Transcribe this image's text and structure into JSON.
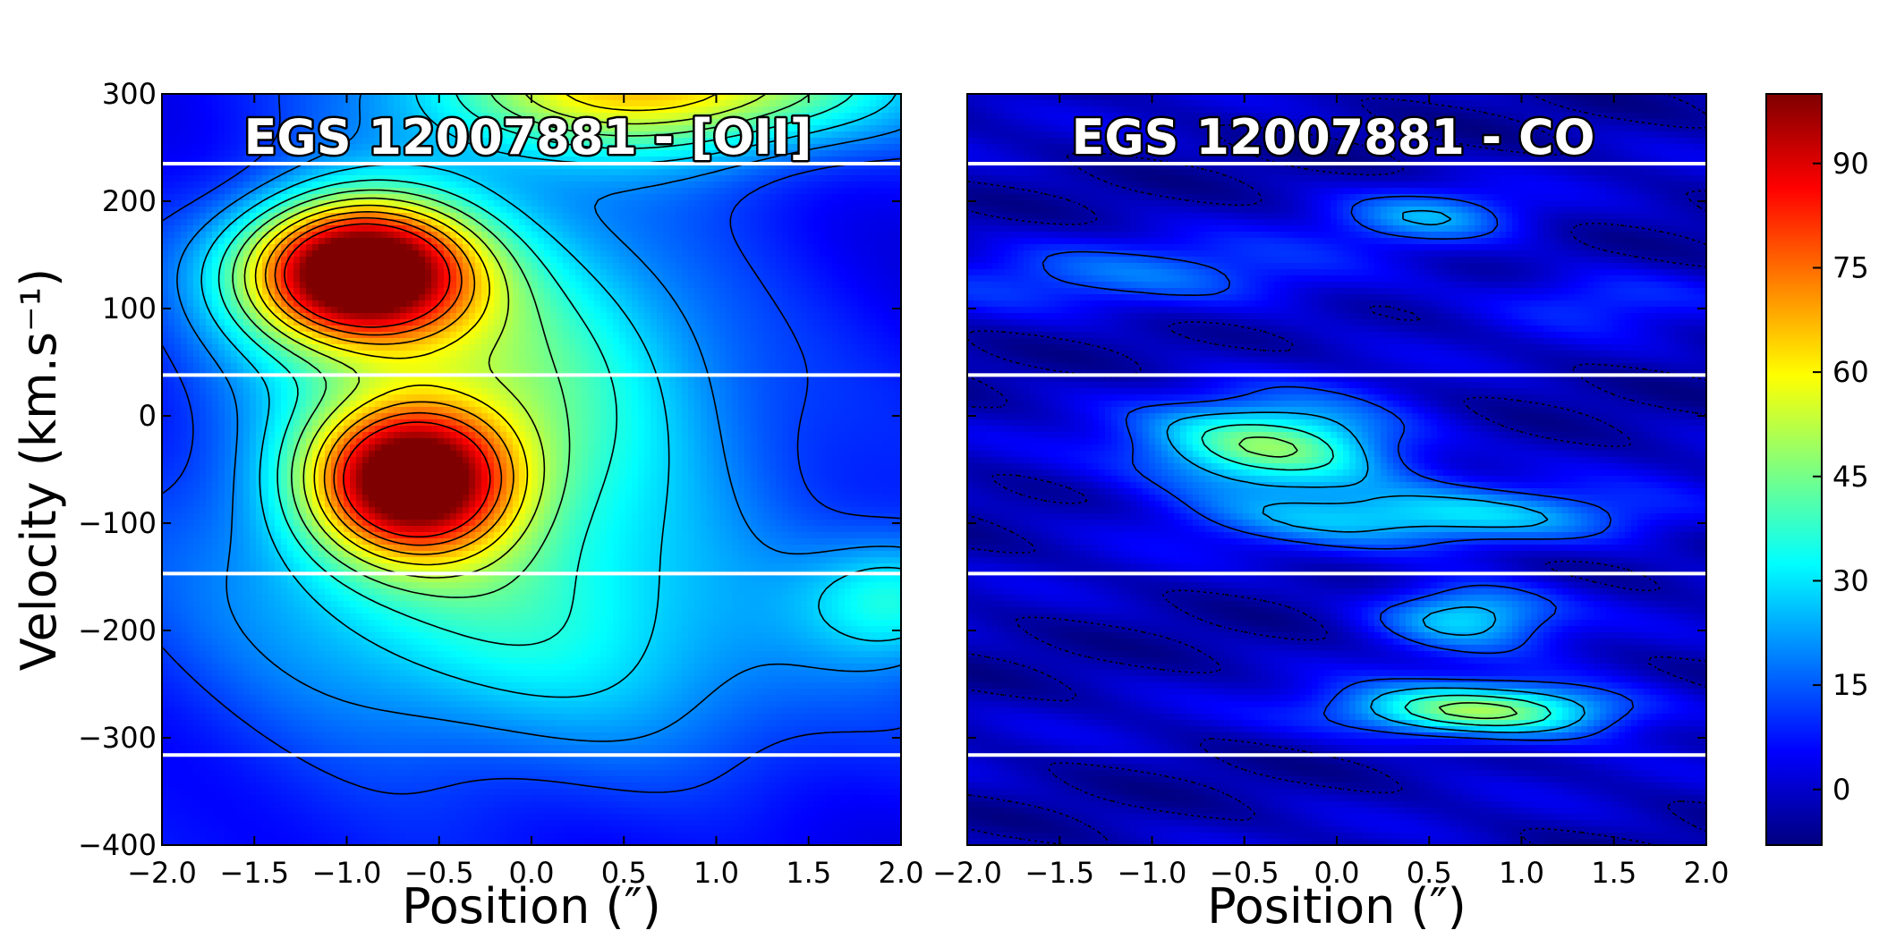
{
  "chart_data": [
    {
      "type": "heatmap",
      "title": "EGS 12007881 - [OII]",
      "xlabel": "Position (″)",
      "ylabel": "Velocity (km.s⁻¹)",
      "xlim": [
        -2.0,
        2.0
      ],
      "ylim": [
        -400,
        300
      ],
      "x_ticks": [
        "−2.0",
        "−1.5",
        "−1.0",
        "−0.5",
        "0.0",
        "0.5",
        "1.0",
        "1.5",
        "2.0"
      ],
      "x_tick_values": [
        -2.0,
        -1.5,
        -1.0,
        -0.5,
        0.0,
        0.5,
        1.0,
        1.5,
        2.0
      ],
      "y_ticks": [
        "300",
        "200",
        "100",
        "0",
        "−100",
        "−200",
        "−300",
        "−400"
      ],
      "y_tick_values": [
        300,
        200,
        100,
        0,
        -100,
        -200,
        -300,
        -400
      ],
      "horizontal_lines_velocity": [
        235,
        38,
        -147,
        -316
      ],
      "components": [
        {
          "x": -0.95,
          "v": 135,
          "peak": 98,
          "sx": 0.42,
          "sv": 45
        },
        {
          "x": -0.65,
          "v": -60,
          "peak": 82,
          "sx": 0.38,
          "sv": 48
        },
        {
          "x": -0.3,
          "v": 40,
          "peak": 38,
          "sx": 0.9,
          "sv": 140
        },
        {
          "x": 0.0,
          "v": -200,
          "peak": 22,
          "sx": 1.3,
          "sv": 110
        },
        {
          "x": 0.7,
          "v": 310,
          "peak": 58,
          "sx": 0.9,
          "sv": 45
        },
        {
          "x": 2.0,
          "v": -170,
          "peak": 26,
          "sx": 0.35,
          "sv": 40
        }
      ]
    },
    {
      "type": "heatmap",
      "title": "EGS 12007881 - CO",
      "xlabel": "Position (″)",
      "ylabel": "",
      "xlim": [
        -2.0,
        2.0
      ],
      "ylim": [
        -400,
        300
      ],
      "x_ticks": [
        "−2.0",
        "−1.5",
        "−1.0",
        "−0.5",
        "0.0",
        "0.5",
        "1.0",
        "1.5",
        "2.0"
      ],
      "x_tick_values": [
        -2.0,
        -1.5,
        -1.0,
        -0.5,
        0.0,
        0.5,
        1.0,
        1.5,
        2.0
      ],
      "horizontal_lines_velocity": [
        235,
        38,
        -147,
        -316
      ],
      "components": [
        {
          "x": -0.35,
          "v": -30,
          "peak": 50,
          "sx": 0.5,
          "sv": 30
        },
        {
          "x": 0.55,
          "v": -95,
          "peak": 28,
          "sx": 0.9,
          "sv": 20
        },
        {
          "x": 0.8,
          "v": -275,
          "peak": 52,
          "sx": 0.55,
          "sv": 18
        },
        {
          "x": 0.7,
          "v": -185,
          "peak": 32,
          "sx": 0.35,
          "sv": 22
        },
        {
          "x": 0.5,
          "v": 185,
          "peak": 22,
          "sx": 0.35,
          "sv": 18
        },
        {
          "x": -1.0,
          "v": 130,
          "peak": 16,
          "sx": 0.9,
          "sv": 25
        },
        {
          "x": 1.4,
          "v": 110,
          "peak": 12,
          "sx": 0.4,
          "sv": 20
        }
      ]
    }
  ],
  "colorbar": {
    "min": -8,
    "max": 100,
    "ticks": [
      "90",
      "75",
      "60",
      "45",
      "30",
      "15",
      "0"
    ],
    "tick_values": [
      90,
      75,
      60,
      45,
      30,
      15,
      0
    ],
    "colormap": [
      "#00007f",
      "#0000ff",
      "#007fff",
      "#00ffff",
      "#7fff7f",
      "#ffff00",
      "#ff7f00",
      "#ff0000",
      "#7f0000"
    ]
  },
  "style": {
    "guide_line_color": "#ffffff",
    "contour_color": "#000000"
  }
}
